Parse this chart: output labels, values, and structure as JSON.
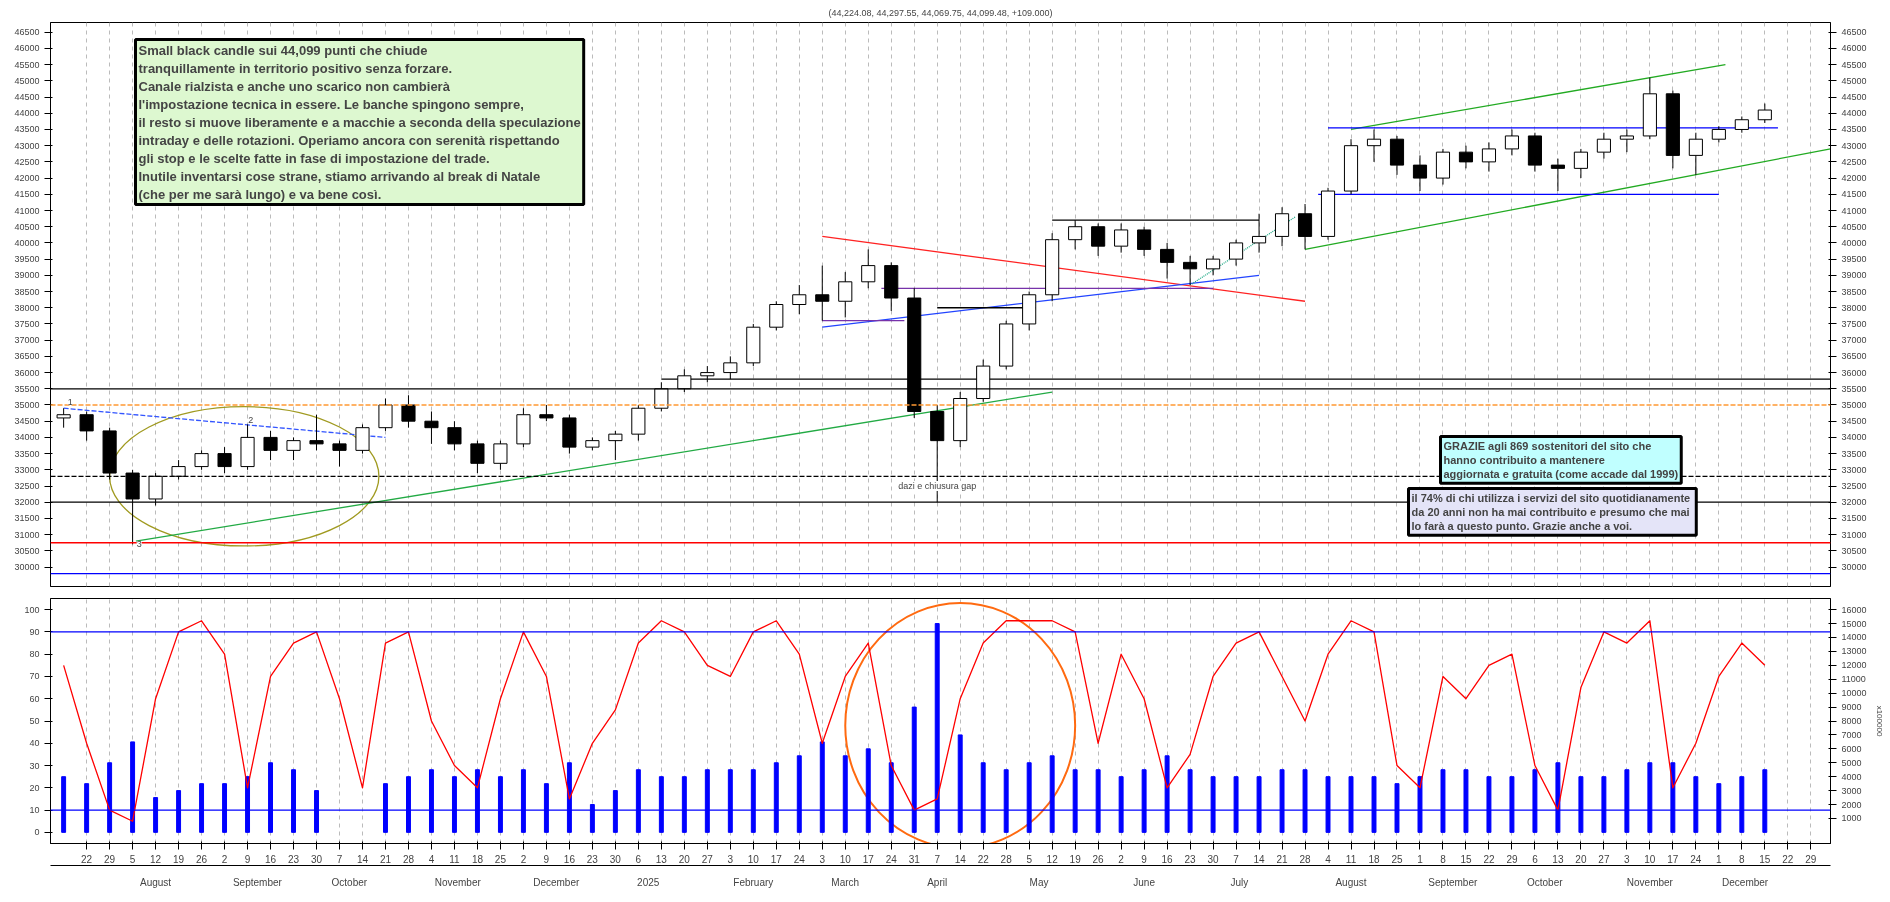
{
  "chart_data": [
    {
      "type": "candlestick",
      "title": "(44,224.08, 44,297.55, 44,069.75, 44,099.48, +109.000)",
      "x": [
        "2024-07-15",
        "2024-07-22",
        "2024-07-29",
        "2024-08-05",
        "2024-08-12",
        "2024-08-19",
        "2024-08-26",
        "2024-09-02",
        "2024-09-09",
        "2024-09-16",
        "2024-09-23",
        "2024-09-30",
        "2024-10-07",
        "2024-10-14",
        "2024-10-21",
        "2024-10-28",
        "2024-11-04",
        "2024-11-11",
        "2024-11-18",
        "2024-11-25",
        "2024-12-02",
        "2024-12-09",
        "2024-12-16",
        "2024-12-23",
        "2024-12-30",
        "2025-01-06",
        "2025-01-13",
        "2025-01-20",
        "2025-01-27",
        "2025-02-03",
        "2025-02-10",
        "2025-02-17",
        "2025-02-24",
        "2025-03-03",
        "2025-03-10",
        "2025-03-17",
        "2025-03-24",
        "2025-03-31",
        "2025-04-07",
        "2025-04-14",
        "2025-04-21",
        "2025-04-28",
        "2025-05-05",
        "2025-05-12",
        "2025-05-19",
        "2025-05-26",
        "2025-06-02",
        "2025-06-09",
        "2025-06-16",
        "2025-06-23",
        "2025-06-30",
        "2025-07-07",
        "2025-07-14",
        "2025-07-21",
        "2025-07-28",
        "2025-08-04",
        "2025-08-11",
        "2025-08-18",
        "2025-08-25",
        "2025-09-01",
        "2025-09-08",
        "2025-09-15",
        "2025-09-22",
        "2025-09-29",
        "2025-10-06",
        "2025-10-13",
        "2025-10-20",
        "2025-10-27",
        "2025-11-03",
        "2025-11-10",
        "2025-11-17",
        "2025-11-24",
        "2025-12-01",
        "2025-12-08",
        "2025-12-15"
      ],
      "ohlc": [
        [
          34600,
          34900,
          34300,
          34700
        ],
        [
          34700,
          34800,
          33900,
          34200
        ],
        [
          34200,
          34300,
          32700,
          32900
        ],
        [
          32900,
          33000,
          30700,
          32100
        ],
        [
          32100,
          32900,
          31900,
          32800
        ],
        [
          32800,
          33300,
          32700,
          33100
        ],
        [
          33100,
          33600,
          33000,
          33500
        ],
        [
          33500,
          33700,
          32900,
          33100
        ],
        [
          33100,
          34400,
          33000,
          34000
        ],
        [
          34000,
          34200,
          33300,
          33600
        ],
        [
          33600,
          34000,
          33300,
          33900
        ],
        [
          33900,
          34700,
          33600,
          33800
        ],
        [
          33800,
          33900,
          33100,
          33600
        ],
        [
          33600,
          34400,
          33500,
          34300
        ],
        [
          34300,
          35200,
          34200,
          35000
        ],
        [
          35000,
          35300,
          34300,
          34500
        ],
        [
          34500,
          34800,
          33800,
          34300
        ],
        [
          34300,
          34500,
          33600,
          33800
        ],
        [
          33800,
          33900,
          32900,
          33200
        ],
        [
          33200,
          33900,
          33000,
          33800
        ],
        [
          33800,
          34900,
          33700,
          34700
        ],
        [
          34700,
          35000,
          34500,
          34600
        ],
        [
          34600,
          34700,
          33500,
          33700
        ],
        [
          33700,
          34000,
          33600,
          33900
        ],
        [
          33900,
          34200,
          33300,
          34100
        ],
        [
          34100,
          35000,
          33900,
          34900
        ],
        [
          34900,
          35700,
          34800,
          35500
        ],
        [
          35500,
          36100,
          35400,
          35900
        ],
        [
          35900,
          36200,
          35700,
          36000
        ],
        [
          36000,
          36500,
          35800,
          36300
        ],
        [
          36300,
          37500,
          36200,
          37400
        ],
        [
          37400,
          38200,
          37300,
          38100
        ],
        [
          38100,
          38700,
          37800,
          38400
        ],
        [
          38400,
          39300,
          37600,
          38200
        ],
        [
          38200,
          39100,
          37700,
          38800
        ],
        [
          38800,
          39800,
          38600,
          39300
        ],
        [
          39300,
          39400,
          37900,
          38300
        ],
        [
          38300,
          38600,
          34600,
          34800
        ],
        [
          34800,
          35000,
          32000,
          33900
        ],
        [
          33900,
          35400,
          33700,
          35200
        ],
        [
          35200,
          36400,
          35100,
          36200
        ],
        [
          36200,
          37600,
          36100,
          37500
        ],
        [
          37500,
          38500,
          37300,
          38400
        ],
        [
          38400,
          40300,
          38200,
          40100
        ],
        [
          40100,
          40700,
          39800,
          40500
        ],
        [
          40500,
          40600,
          39600,
          39900
        ],
        [
          39900,
          40600,
          39700,
          40400
        ],
        [
          40400,
          40500,
          39600,
          39800
        ],
        [
          39800,
          40000,
          38900,
          39400
        ],
        [
          39400,
          39600,
          38700,
          39200
        ],
        [
          39200,
          39600,
          39000,
          39500
        ],
        [
          39500,
          40100,
          39300,
          40000
        ],
        [
          40000,
          40900,
          39700,
          40200
        ],
        [
          40200,
          41100,
          39900,
          40900
        ],
        [
          40900,
          41200,
          39800,
          40200
        ],
        [
          40200,
          41700,
          40100,
          41600
        ],
        [
          41600,
          43200,
          41500,
          43000
        ],
        [
          43000,
          43500,
          42500,
          43200
        ],
        [
          43200,
          43300,
          42100,
          42400
        ],
        [
          42400,
          42700,
          41600,
          42000
        ],
        [
          42000,
          42900,
          41800,
          42800
        ],
        [
          42800,
          43000,
          42300,
          42500
        ],
        [
          42500,
          43100,
          42200,
          42900
        ],
        [
          42900,
          43500,
          42700,
          43300
        ],
        [
          43300,
          43400,
          42200,
          42400
        ],
        [
          42400,
          42600,
          41600,
          42300
        ],
        [
          42300,
          42900,
          42000,
          42800
        ],
        [
          42800,
          43400,
          42600,
          43200
        ],
        [
          43200,
          43500,
          42800,
          43300
        ],
        [
          43300,
          45100,
          43200,
          44600
        ],
        [
          44600,
          44700,
          42300,
          42700
        ],
        [
          42700,
          43400,
          42100,
          43200
        ],
        [
          43200,
          43600,
          43100,
          43500
        ],
        [
          43500,
          43900,
          43400,
          43800
        ],
        [
          43800,
          44300,
          43700,
          44099.48
        ]
      ],
      "series": [
        {
          "type": "line",
          "x": [
            "2024-08-06",
            "2025-05-12"
          ],
          "values": [
            30800,
            35400
          ],
          "color": "#22aa44",
          "line_style": "solid"
        },
        {
          "type": "line",
          "x": [
            "2024-07-15",
            "2024-10-21"
          ],
          "values": [
            34900,
            34000
          ],
          "color": "#3355ff",
          "line_style": "dashed"
        },
        {
          "type": "line",
          "x": [
            "2025-03-03",
            "2025-07-28"
          ],
          "values": [
            40200,
            38200
          ],
          "color": "#ff2222",
          "line_style": "solid"
        },
        {
          "type": "line",
          "x": [
            "2025-03-03",
            "2025-07-14"
          ],
          "values": [
            37400,
            39000
          ],
          "color": "#2244ff",
          "line_style": "solid"
        },
        {
          "type": "line",
          "x": [
            "2025-03-03",
            "2025-03-28"
          ],
          "values": [
            37600,
            37600
          ],
          "color": "#7733aa",
          "line_style": "solid"
        },
        {
          "type": "line",
          "x": [
            "2025-03-21",
            "2025-06-30"
          ],
          "values": [
            38600,
            38600
          ],
          "color": "#7733aa",
          "line_style": "solid"
        },
        {
          "type": "line",
          "x": [
            "2025-04-07",
            "2025-05-07"
          ],
          "values": [
            38000,
            38000
          ],
          "color": "#000000",
          "line_style": "solid"
        },
        {
          "type": "line",
          "x": [
            "2025-05-12",
            "2025-07-14"
          ],
          "values": [
            40700,
            40700
          ],
          "color": "#000000",
          "line_style": "solid"
        },
        {
          "type": "line",
          "x": [
            "2025-06-23",
            "2025-07-25"
          ],
          "values": [
            38700,
            40800
          ],
          "color": "#22aa88",
          "line_style": "dotted"
        },
        {
          "type": "line",
          "x": [
            "2025-08-11",
            "2025-12-03"
          ],
          "values": [
            43500,
            45500
          ],
          "color": "#22aa22",
          "line_style": "solid"
        },
        {
          "type": "line",
          "x": [
            "2025-07-28",
            "2026-01-04"
          ],
          "values": [
            39800,
            42900
          ],
          "color": "#22aa22",
          "line_style": "solid"
        },
        {
          "type": "line",
          "x": [
            "2025-08-04",
            "2025-12-19"
          ],
          "values": [
            43550,
            43550
          ],
          "color": "#0000ff",
          "line_style": "solid"
        },
        {
          "type": "line",
          "x": [
            "2025-08-01",
            "2025-12-01"
          ],
          "values": [
            41500,
            41500
          ],
          "color": "#0000ff",
          "line_style": "solid"
        },
        {
          "type": "line",
          "x": [
            "2025-01-13",
            "2026-01-04"
          ],
          "values": [
            35800,
            35800
          ],
          "color": "#000000",
          "line_style": "solid"
        }
      ],
      "ref_lines": [
        {
          "axis": "y",
          "value": 35500,
          "color": "#000000",
          "line_style": "solid"
        },
        {
          "axis": "y",
          "value": 35000,
          "color": "#ff9933",
          "line_style": "dashed"
        },
        {
          "axis": "y",
          "value": 32800,
          "color": "#000000",
          "line_style": "dashed"
        },
        {
          "axis": "y",
          "value": 32000,
          "color": "#000000",
          "line_style": "solid"
        },
        {
          "axis": "y",
          "value": 30750,
          "color": "#ff0000",
          "line_style": "solid"
        },
        {
          "axis": "y",
          "value": 29800,
          "color": "#0000ff",
          "line_style": "solid"
        }
      ],
      "annotations": [
        "Small black candle sui 44,099 punti che chiude\ntranquillamente in territorio positivo senza forzare.\nCanale rialzista e anche uno scarico non cambierà\nl'impostazione tecnica in essere. Le banche spingono sempre,\nil resto si muove liberamente e a macchie a seconda della speculazione\nintraday e delle rotazioni. Operiamo ancora con serenità rispettando\ngli stop e le scelte fatte in fase di impostazione del trade.\nInutile inventarsi cose strane, stiamo arrivando al break di Natale\n(che per me sarà lungo) e va bene così.",
        "GRAZIE agli 869  sostenitori del sito che\nhanno contribuito a mantenere\naggiornata e gratuita (come accade dal 1999)",
        "il 74%  di chi utilizza i servizi del sito quotidianamente\nda 20 anni non ha mai contribuito e presumo che mai\nlo farà a questo punto. Grazie anche a voi.",
        {
          "text": "dazi e chiusura gap",
          "x": "2025-04-07",
          "y": 32500
        },
        {
          "text": "1",
          "x": "2024-07-17",
          "y": 35100
        },
        {
          "text": "2",
          "x": "2024-09-10",
          "y": 34550
        },
        {
          "text": "3",
          "x": "2024-08-07",
          "y": 30700
        }
      ],
      "xlim": [
        "2024-07-11",
        "2026-01-04"
      ],
      "ylim": [
        29400,
        46800
      ],
      "yticks": [
        30000,
        30500,
        31000,
        31500,
        32000,
        32500,
        33000,
        33500,
        34000,
        34500,
        35000,
        35500,
        36000,
        36500,
        37000,
        37500,
        38000,
        38500,
        39000,
        39500,
        40000,
        40500,
        41000,
        41500,
        42000,
        42500,
        43000,
        43500,
        44000,
        44500,
        45000,
        45500,
        46000,
        46500
      ],
      "y2lim": [
        29400,
        46800
      ],
      "y2ticks": [
        30000,
        30500,
        31000,
        31500,
        32000,
        32500,
        33000,
        33500,
        34000,
        34500,
        35000,
        35500,
        36000,
        36500,
        37000,
        37500,
        38000,
        38500,
        39000,
        39500,
        40000,
        40500,
        41000,
        41500,
        42000,
        42500,
        43000,
        43500,
        44000,
        44500,
        45000,
        45500,
        46000,
        46500
      ],
      "grid": "x",
      "tick_labels": "y"
    },
    {
      "type": "line",
      "x": [
        "2024-07-15",
        "2024-07-22",
        "2024-07-29",
        "2024-08-05",
        "2024-08-12",
        "2024-08-19",
        "2024-08-26",
        "2024-09-02",
        "2024-09-09",
        "2024-09-16",
        "2024-09-23",
        "2024-09-30",
        "2024-10-07",
        "2024-10-14",
        "2024-10-21",
        "2024-10-28",
        "2024-11-04",
        "2024-11-11",
        "2024-11-18",
        "2024-11-25",
        "2024-12-02",
        "2024-12-09",
        "2024-12-16",
        "2024-12-23",
        "2024-12-30",
        "2025-01-06",
        "2025-01-13",
        "2025-01-20",
        "2025-01-27",
        "2025-02-03",
        "2025-02-10",
        "2025-02-17",
        "2025-02-24",
        "2025-03-03",
        "2025-03-10",
        "2025-03-17",
        "2025-03-24",
        "2025-03-31",
        "2025-04-07",
        "2025-04-14",
        "2025-04-21",
        "2025-04-28",
        "2025-05-05",
        "2025-05-12",
        "2025-05-19",
        "2025-05-26",
        "2025-06-02",
        "2025-06-09",
        "2025-06-16",
        "2025-06-23",
        "2025-06-30",
        "2025-07-07",
        "2025-07-14",
        "2025-07-21",
        "2025-07-28",
        "2025-08-04",
        "2025-08-11",
        "2025-08-18",
        "2025-08-25",
        "2025-09-01",
        "2025-09-08",
        "2025-09-15",
        "2025-09-22",
        "2025-09-29",
        "2025-10-06",
        "2025-10-13",
        "2025-10-20",
        "2025-10-27",
        "2025-11-03",
        "2025-11-10",
        "2025-11-17",
        "2025-11-24",
        "2025-12-01",
        "2025-12-08",
        "2025-12-15"
      ],
      "series": [
        {
          "type": "line",
          "color": "#ff0000",
          "values": [
            75,
            40,
            10,
            5,
            60,
            90,
            95,
            80,
            20,
            70,
            85,
            90,
            60,
            20,
            85,
            90,
            50,
            30,
            20,
            60,
            90,
            70,
            15,
            40,
            55,
            85,
            95,
            90,
            75,
            70,
            90,
            95,
            80,
            40,
            70,
            85,
            30,
            10,
            15,
            60,
            85,
            95,
            95,
            95,
            90,
            40,
            80,
            60,
            20,
            35,
            70,
            85,
            90,
            70,
            50,
            80,
            95,
            90,
            30,
            20,
            70,
            60,
            75,
            80,
            30,
            10,
            65,
            90,
            85,
            95,
            20,
            40,
            70,
            85,
            75
          ]
        },
        {
          "type": "bar",
          "axis": "y2",
          "color": "#0000ff",
          "values": [
            4000,
            3500,
            5000,
            6500,
            2500,
            3000,
            3500,
            3500,
            4000,
            5000,
            4500,
            3000,
            null,
            null,
            3500,
            4000,
            4500,
            4000,
            4500,
            4000,
            4500,
            3500,
            5000,
            2000,
            3000,
            4500,
            4000,
            4000,
            4500,
            4500,
            4500,
            5000,
            5500,
            6500,
            5500,
            6000,
            5000,
            9000,
            15000,
            7000,
            5000,
            4500,
            5000,
            5500,
            4500,
            4500,
            4000,
            4500,
            5500,
            4500,
            4000,
            4000,
            4000,
            4500,
            4500,
            4000,
            4000,
            4000,
            3500,
            4000,
            4500,
            4500,
            4000,
            4000,
            4500,
            5000,
            4000,
            4000,
            4500,
            5000,
            5000,
            4000,
            3500,
            4000,
            4500
          ]
        }
      ],
      "ref_lines": [
        {
          "axis": "y",
          "value": 90,
          "color": "#0000ff"
        },
        {
          "axis": "y",
          "value": 10,
          "color": "#0000ff"
        }
      ],
      "xlim": [
        "2024-07-11",
        "2026-01-04"
      ],
      "xticks": [
        {
          "value": "2024-07-22",
          "label": "22"
        },
        {
          "value": "2024-07-29",
          "label": "29"
        },
        {
          "value": "2024-08-05",
          "label": "5"
        },
        {
          "value": "2024-08-12",
          "label": "12"
        },
        {
          "value": "2024-08-19",
          "label": "19"
        },
        {
          "value": "2024-08-26",
          "label": "26"
        },
        {
          "value": "2024-09-02",
          "label": "2"
        },
        {
          "value": "2024-09-09",
          "label": "9"
        },
        {
          "value": "2024-09-16",
          "label": "16"
        },
        {
          "value": "2024-09-23",
          "label": "23"
        },
        {
          "value": "2024-09-30",
          "label": "30"
        },
        {
          "value": "2024-10-07",
          "label": "7"
        },
        {
          "value": "2024-10-14",
          "label": "14"
        },
        {
          "value": "2024-10-21",
          "label": "21"
        },
        {
          "value": "2024-10-28",
          "label": "28"
        },
        {
          "value": "2024-11-04",
          "label": "4"
        },
        {
          "value": "2024-11-11",
          "label": "11"
        },
        {
          "value": "2024-11-18",
          "label": "18"
        },
        {
          "value": "2024-11-25",
          "label": "25"
        },
        {
          "value": "2024-12-02",
          "label": "2"
        },
        {
          "value": "2024-12-09",
          "label": "9"
        },
        {
          "value": "2024-12-16",
          "label": "16"
        },
        {
          "value": "2024-12-23",
          "label": "23"
        },
        {
          "value": "2024-12-30",
          "label": "30"
        },
        {
          "value": "2025-01-06",
          "label": "6"
        },
        {
          "value": "2025-01-13",
          "label": "13"
        },
        {
          "value": "2025-01-20",
          "label": "20"
        },
        {
          "value": "2025-01-27",
          "label": "27"
        },
        {
          "value": "2025-02-03",
          "label": "3"
        },
        {
          "value": "2025-02-10",
          "label": "10"
        },
        {
          "value": "2025-02-17",
          "label": "17"
        },
        {
          "value": "2025-02-24",
          "label": "24"
        },
        {
          "value": "2025-03-03",
          "label": "3"
        },
        {
          "value": "2025-03-10",
          "label": "10"
        },
        {
          "value": "2025-03-17",
          "label": "17"
        },
        {
          "value": "2025-03-24",
          "label": "24"
        },
        {
          "value": "2025-03-31",
          "label": "31"
        },
        {
          "value": "2025-04-07",
          "label": "7"
        },
        {
          "value": "2025-04-14",
          "label": "14"
        },
        {
          "value": "2025-04-21",
          "label": "22"
        },
        {
          "value": "2025-04-28",
          "label": "28"
        },
        {
          "value": "2025-05-05",
          "label": "5"
        },
        {
          "value": "2025-05-12",
          "label": "12"
        },
        {
          "value": "2025-05-19",
          "label": "19"
        },
        {
          "value": "2025-05-26",
          "label": "26"
        },
        {
          "value": "2025-06-02",
          "label": "2"
        },
        {
          "value": "2025-06-09",
          "label": "9"
        },
        {
          "value": "2025-06-16",
          "label": "16"
        },
        {
          "value": "2025-06-23",
          "label": "23"
        },
        {
          "value": "2025-06-30",
          "label": "30"
        },
        {
          "value": "2025-07-07",
          "label": "7"
        },
        {
          "value": "2025-07-14",
          "label": "14"
        },
        {
          "value": "2025-07-21",
          "label": "21"
        },
        {
          "value": "2025-07-28",
          "label": "28"
        },
        {
          "value": "2025-08-04",
          "label": "4"
        },
        {
          "value": "2025-08-11",
          "label": "11"
        },
        {
          "value": "2025-08-18",
          "label": "18"
        },
        {
          "value": "2025-08-25",
          "label": "25"
        },
        {
          "value": "2025-09-01",
          "label": "1"
        },
        {
          "value": "2025-09-08",
          "label": "8"
        },
        {
          "value": "2025-09-15",
          "label": "15"
        },
        {
          "value": "2025-09-22",
          "label": "22"
        },
        {
          "value": "2025-09-29",
          "label": "29"
        },
        {
          "value": "2025-10-06",
          "label": "6"
        },
        {
          "value": "2025-10-13",
          "label": "13"
        },
        {
          "value": "2025-10-20",
          "label": "20"
        },
        {
          "value": "2025-10-27",
          "label": "27"
        },
        {
          "value": "2025-11-03",
          "label": "3"
        },
        {
          "value": "2025-11-10",
          "label": "10"
        },
        {
          "value": "2025-11-17",
          "label": "17"
        },
        {
          "value": "2025-11-24",
          "label": "24"
        },
        {
          "value": "2025-12-01",
          "label": "1"
        },
        {
          "value": "2025-12-08",
          "label": "8"
        },
        {
          "value": "2025-12-15",
          "label": "15"
        },
        {
          "value": "2025-12-22",
          "label": "22"
        },
        {
          "value": "2025-12-29",
          "label": "29"
        }
      ],
      "x2lim": [
        "2024-07-11",
        "2026-01-04"
      ],
      "x2ticks": [
        {
          "value": "2024-08-12",
          "label": "August"
        },
        {
          "value": "2024-09-12",
          "label": "September"
        },
        {
          "value": "2024-10-10",
          "label": "October"
        },
        {
          "value": "2024-11-12",
          "label": "November"
        },
        {
          "value": "2024-12-12",
          "label": "December"
        },
        {
          "value": "2025-01-09",
          "label": "2025"
        },
        {
          "value": "2025-02-10",
          "label": "February"
        },
        {
          "value": "2025-03-10",
          "label": "March"
        },
        {
          "value": "2025-04-07",
          "label": "April"
        },
        {
          "value": "2025-05-08",
          "label": "May"
        },
        {
          "value": "2025-06-09",
          "label": "June"
        },
        {
          "value": "2025-07-08",
          "label": "July"
        },
        {
          "value": "2025-08-11",
          "label": "August"
        },
        {
          "value": "2025-09-11",
          "label": "September"
        },
        {
          "value": "2025-10-09",
          "label": "October"
        },
        {
          "value": "2025-11-10",
          "label": "November"
        },
        {
          "value": "2025-12-09",
          "label": "December"
        }
      ],
      "ylim": [
        -5,
        105
      ],
      "yticks": [
        0,
        10,
        20,
        30,
        40,
        50,
        60,
        70,
        80,
        90,
        100
      ],
      "y2lim": [
        -800,
        16800
      ],
      "y2ticks": [
        1000,
        2000,
        3000,
        4000,
        5000,
        6000,
        7000,
        8000,
        9000,
        10000,
        11000,
        12000,
        13000,
        14000,
        15000,
        16000
      ],
      "y2label": "x100000",
      "grid": "x"
    }
  ]
}
